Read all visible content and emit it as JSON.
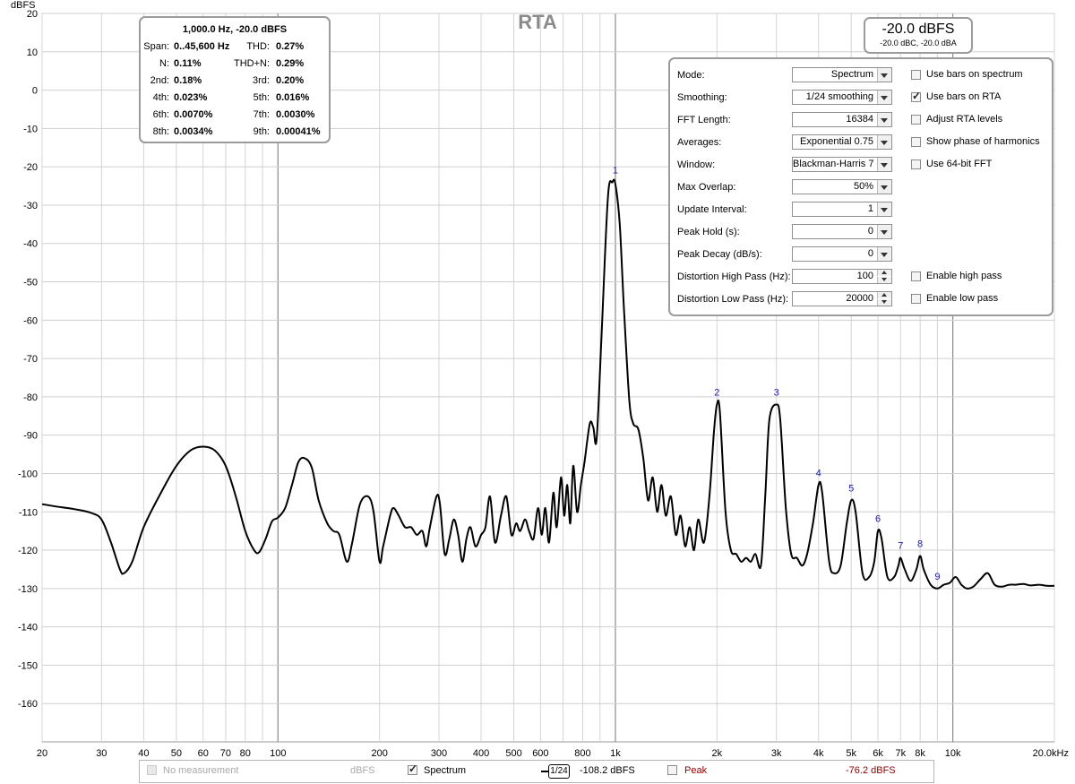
{
  "title": "RTA",
  "y_unit": "dBFS",
  "chart_data": {
    "type": "line",
    "title": "RTA",
    "ylabel": "dBFS",
    "xlabel": "kHz",
    "x_scale": "log",
    "xlim": [
      20,
      20000
    ],
    "ylim": [
      -170,
      20
    ],
    "grid": true,
    "y_ticks": [
      "20",
      "10",
      "0",
      "-10",
      "-20",
      "-30",
      "-40",
      "-50",
      "-60",
      "-70",
      "-80",
      "-90",
      "-100",
      "-110",
      "-120",
      "-130",
      "-140",
      "-150",
      "-160"
    ],
    "x_ticks": [
      {
        "v": 20,
        "l": "20"
      },
      {
        "v": 30,
        "l": "30"
      },
      {
        "v": 40,
        "l": "40"
      },
      {
        "v": 50,
        "l": "50"
      },
      {
        "v": 60,
        "l": "60"
      },
      {
        "v": 70,
        "l": "70"
      },
      {
        "v": 80,
        "l": "80"
      },
      {
        "v": 100,
        "l": "100"
      },
      {
        "v": 200,
        "l": "200"
      },
      {
        "v": 300,
        "l": "300"
      },
      {
        "v": 400,
        "l": "400"
      },
      {
        "v": 500,
        "l": "500"
      },
      {
        "v": 600,
        "l": "600"
      },
      {
        "v": 800,
        "l": "800"
      },
      {
        "v": 1000,
        "l": "1k"
      },
      {
        "v": 2000,
        "l": "2k"
      },
      {
        "v": 3000,
        "l": "3k"
      },
      {
        "v": 4000,
        "l": "4k"
      },
      {
        "v": 5000,
        "l": "5k"
      },
      {
        "v": 6000,
        "l": "6k"
      },
      {
        "v": 7000,
        "l": "7k"
      },
      {
        "v": 8000,
        "l": "8k"
      },
      {
        "v": 10000,
        "l": "10k"
      },
      {
        "v": 20000,
        "l": "20.0kHz"
      }
    ],
    "series": [
      {
        "name": "Spectrum",
        "color": "#000000",
        "points": [
          [
            20,
            -108
          ],
          [
            22,
            -108.6
          ],
          [
            25,
            -109.3
          ],
          [
            28,
            -110.3
          ],
          [
            30,
            -112
          ],
          [
            32,
            -118
          ],
          [
            34,
            -125
          ],
          [
            35,
            -126
          ],
          [
            37,
            -123
          ],
          [
            40,
            -114
          ],
          [
            45,
            -105
          ],
          [
            50,
            -98
          ],
          [
            55,
            -94
          ],
          [
            60,
            -93
          ],
          [
            65,
            -94
          ],
          [
            70,
            -98
          ],
          [
            75,
            -106
          ],
          [
            80,
            -115
          ],
          [
            85,
            -120
          ],
          [
            88,
            -120.5
          ],
          [
            92,
            -117
          ],
          [
            96,
            -112.5
          ],
          [
            100,
            -111.5
          ],
          [
            105,
            -109
          ],
          [
            110,
            -103
          ],
          [
            115,
            -97
          ],
          [
            120,
            -96
          ],
          [
            126,
            -98.5
          ],
          [
            132,
            -107
          ],
          [
            140,
            -113
          ],
          [
            146,
            -115
          ],
          [
            152,
            -116
          ],
          [
            160,
            -123
          ],
          [
            166,
            -118
          ],
          [
            175,
            -108
          ],
          [
            185,
            -106
          ],
          [
            192,
            -110
          ],
          [
            200,
            -123
          ],
          [
            205,
            -119
          ],
          [
            215,
            -111
          ],
          [
            220,
            -109
          ],
          [
            228,
            -111
          ],
          [
            238,
            -114
          ],
          [
            248,
            -114
          ],
          [
            258,
            -116
          ],
          [
            268,
            -115
          ],
          [
            275,
            -119
          ],
          [
            282,
            -114
          ],
          [
            295,
            -106
          ],
          [
            302,
            -108
          ],
          [
            312,
            -121
          ],
          [
            322,
            -117
          ],
          [
            332,
            -112
          ],
          [
            342,
            -116
          ],
          [
            352,
            -123
          ],
          [
            362,
            -117
          ],
          [
            372,
            -114
          ],
          [
            385,
            -119
          ],
          [
            400,
            -116
          ],
          [
            412,
            -114
          ],
          [
            425,
            -106
          ],
          [
            440,
            -118
          ],
          [
            458,
            -111
          ],
          [
            475,
            -106
          ],
          [
            492,
            -116
          ],
          [
            508,
            -113
          ],
          [
            522,
            -115
          ],
          [
            540,
            -112
          ],
          [
            555,
            -115
          ],
          [
            572,
            -117
          ],
          [
            590,
            -109
          ],
          [
            605,
            -116
          ],
          [
            620,
            -109
          ],
          [
            636,
            -118
          ],
          [
            655,
            -105
          ],
          [
            670,
            -114
          ],
          [
            690,
            -101
          ],
          [
            705,
            -111
          ],
          [
            720,
            -103
          ],
          [
            735,
            -113
          ],
          [
            750,
            -98
          ],
          [
            770,
            -110
          ],
          [
            790,
            -103
          ],
          [
            810,
            -97
          ],
          [
            840,
            -87
          ],
          [
            860,
            -88
          ],
          [
            880,
            -91
          ],
          [
            910,
            -64
          ],
          [
            950,
            -28
          ],
          [
            980,
            -24
          ],
          [
            1000,
            -24.5
          ],
          [
            1030,
            -35
          ],
          [
            1060,
            -57
          ],
          [
            1100,
            -81
          ],
          [
            1130,
            -87
          ],
          [
            1170,
            -88.5
          ],
          [
            1210,
            -96
          ],
          [
            1250,
            -107
          ],
          [
            1290,
            -101
          ],
          [
            1330,
            -110
          ],
          [
            1370,
            -103
          ],
          [
            1410,
            -111
          ],
          [
            1460,
            -106
          ],
          [
            1510,
            -116
          ],
          [
            1560,
            -111
          ],
          [
            1610,
            -119
          ],
          [
            1660,
            -114
          ],
          [
            1710,
            -120
          ],
          [
            1760,
            -112
          ],
          [
            1830,
            -118
          ],
          [
            1900,
            -106
          ],
          [
            1960,
            -89
          ],
          [
            2000,
            -82
          ],
          [
            2040,
            -84
          ],
          [
            2120,
            -110
          ],
          [
            2200,
            -120
          ],
          [
            2280,
            -121
          ],
          [
            2360,
            -123
          ],
          [
            2440,
            -122
          ],
          [
            2520,
            -123
          ],
          [
            2600,
            -121
          ],
          [
            2700,
            -124
          ],
          [
            2780,
            -106
          ],
          [
            2860,
            -86
          ],
          [
            3000,
            -82
          ],
          [
            3080,
            -86
          ],
          [
            3200,
            -109
          ],
          [
            3320,
            -121
          ],
          [
            3450,
            -122
          ],
          [
            3580,
            -124
          ],
          [
            3700,
            -121
          ],
          [
            3850,
            -113
          ],
          [
            4000,
            -103
          ],
          [
            4100,
            -105
          ],
          [
            4300,
            -123
          ],
          [
            4450,
            -126
          ],
          [
            4650,
            -124
          ],
          [
            4850,
            -113
          ],
          [
            5000,
            -107
          ],
          [
            5150,
            -110
          ],
          [
            5400,
            -126
          ],
          [
            5650,
            -127
          ],
          [
            5850,
            -123
          ],
          [
            6000,
            -115
          ],
          [
            6150,
            -117
          ],
          [
            6400,
            -127
          ],
          [
            6700,
            -127
          ],
          [
            6900,
            -124
          ],
          [
            7000,
            -122
          ],
          [
            7200,
            -125
          ],
          [
            7500,
            -128
          ],
          [
            7800,
            -125
          ],
          [
            8000,
            -121.5
          ],
          [
            8200,
            -125
          ],
          [
            8600,
            -129
          ],
          [
            9000,
            -130
          ],
          [
            9400,
            -129
          ],
          [
            9800,
            -128.5
          ],
          [
            10200,
            -127
          ],
          [
            10600,
            -129
          ],
          [
            11000,
            -130
          ],
          [
            11500,
            -129.5
          ],
          [
            12100,
            -127.5
          ],
          [
            12700,
            -126
          ],
          [
            13300,
            -129
          ],
          [
            14000,
            -129.5
          ],
          [
            14700,
            -129
          ],
          [
            15400,
            -129
          ],
          [
            16200,
            -128.8
          ],
          [
            17000,
            -129.2
          ],
          [
            18000,
            -129
          ],
          [
            19000,
            -129.3
          ],
          [
            20000,
            -129.3
          ]
        ]
      }
    ],
    "harmonic_markers": [
      {
        "label": "1",
        "x": 1000,
        "y": -24
      },
      {
        "label": "2",
        "x": 2000,
        "y": -82
      },
      {
        "label": "3",
        "x": 3000,
        "y": -82
      },
      {
        "label": "4",
        "x": 4000,
        "y": -103
      },
      {
        "label": "5",
        "x": 5000,
        "y": -107
      },
      {
        "label": "6",
        "x": 6000,
        "y": -115
      },
      {
        "label": "7",
        "x": 7000,
        "y": -122
      },
      {
        "label": "8",
        "x": 8000,
        "y": -121.5
      },
      {
        "label": "9",
        "x": 9000,
        "y": -130
      }
    ]
  },
  "distortion": {
    "header": "1,000.0 Hz, -20.0 dBFS",
    "rows": [
      {
        "l1": "Span:",
        "v1": "0..45,600 Hz",
        "l2": "THD:",
        "v2": "0.27%"
      },
      {
        "l1": "N:",
        "v1": "0.11%",
        "l2": "THD+N:",
        "v2": "0.29%"
      },
      {
        "l1": "2nd:",
        "v1": "0.18%",
        "l2": "3rd:",
        "v2": "0.20%"
      },
      {
        "l1": "4th:",
        "v1": "0.023%",
        "l2": "5th:",
        "v2": "0.016%"
      },
      {
        "l1": "6th:",
        "v1": "0.0070%",
        "l2": "7th:",
        "v2": "0.0030%"
      },
      {
        "l1": "8th:",
        "v1": "0.0034%",
        "l2": "9th:",
        "v2": "0.00041%"
      }
    ]
  },
  "level": {
    "main": "-20.0 dBFS",
    "sub": "-20.0 dBC, -20.0 dBA"
  },
  "controls": {
    "mode": {
      "label": "Mode:",
      "value": "Spectrum"
    },
    "smoothing": {
      "label": "Smoothing:",
      "value": "1/24 smoothing"
    },
    "fft": {
      "label": "FFT Length:",
      "value": "16384"
    },
    "averages": {
      "label": "Averages:",
      "value": "Exponential 0.75"
    },
    "window": {
      "label": "Window:",
      "value": "Blackman-Harris 7"
    },
    "overlap": {
      "label": "Max Overlap:",
      "value": "50%"
    },
    "update": {
      "label": "Update Interval:",
      "value": "1"
    },
    "peakhold": {
      "label": "Peak Hold (s):",
      "value": "0"
    },
    "peakdecay": {
      "label": "Peak Decay (dB/s):",
      "value": "0"
    },
    "hp": {
      "label": "Distortion High Pass (Hz):",
      "value": "100"
    },
    "lp": {
      "label": "Distortion Low Pass (Hz):",
      "value": "20000"
    },
    "checks": {
      "bars_spectrum": {
        "label": "Use bars on spectrum",
        "checked": false
      },
      "bars_rta": {
        "label": "Use bars on RTA",
        "checked": true
      },
      "adjust": {
        "label": "Adjust RTA levels",
        "checked": false
      },
      "phase": {
        "label": "Show phase of harmonics",
        "checked": false
      },
      "fft64": {
        "label": "Use 64-bit FFT",
        "checked": false
      },
      "highpass": {
        "label": "Enable high pass",
        "checked": false
      },
      "lowpass": {
        "label": "Enable low pass",
        "checked": false
      }
    }
  },
  "legend": {
    "no_measurement": "No measurement",
    "unit": "dBFS",
    "spectrum": "Spectrum",
    "smoothing_icon": "1/24",
    "spectrum_value": "-108.2 dBFS",
    "peak": "Peak",
    "peak_value": "-76.2 dBFS",
    "peak_color": "#8b0000"
  }
}
